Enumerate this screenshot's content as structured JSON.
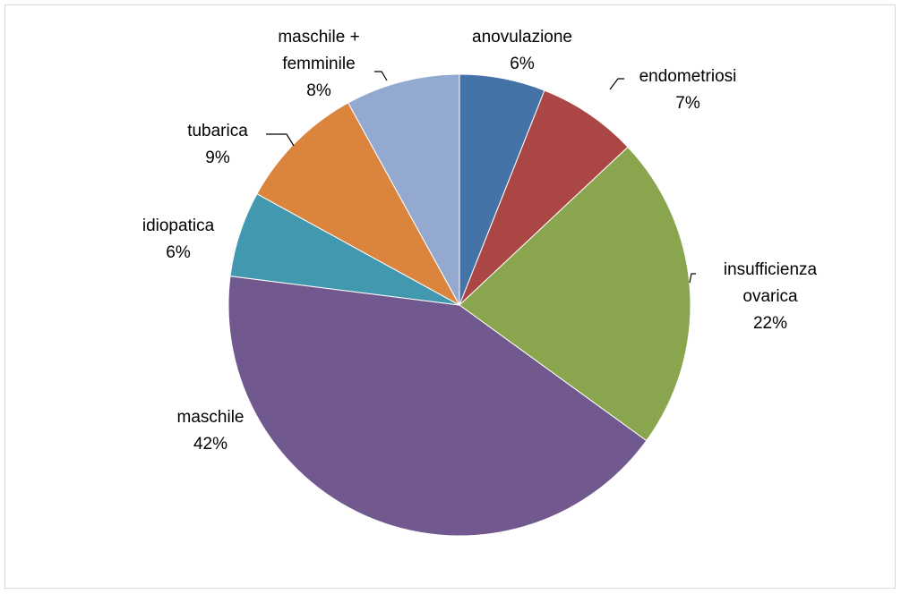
{
  "chart_data": {
    "type": "pie",
    "categories": [
      "anovulazione",
      "endometriosi",
      "insufficienza\novarica",
      "maschile",
      "idiopatica",
      "tubarica",
      "maschile +\nfemminile"
    ],
    "values": [
      6,
      7,
      22,
      42,
      6,
      9,
      8
    ],
    "value_labels": [
      "6%",
      "7%",
      "22%",
      "42%",
      "6%",
      "9%",
      "8%"
    ],
    "colors": [
      "#4572a7",
      "#aa4643",
      "#89a54e",
      "#71588f",
      "#4198af",
      "#db843d",
      "#93a9cf"
    ]
  }
}
